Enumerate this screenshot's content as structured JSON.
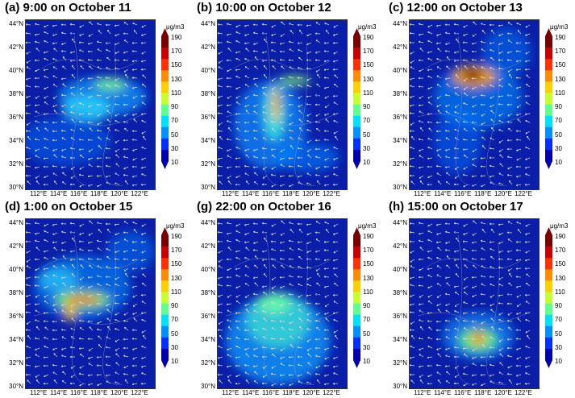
{
  "panels": [
    {
      "id": "a",
      "title": "(a) 9:00 on October 11"
    },
    {
      "id": "b",
      "title": "(b) 10:00 on October 12"
    },
    {
      "id": "c",
      "title": "(c) 12:00 on October 13"
    },
    {
      "id": "d",
      "title": "(d) 1:00 on October 15"
    },
    {
      "id": "g",
      "title": "(g) 22:00 on October 16"
    },
    {
      "id": "h",
      "title": "(h) 15:00 on October 17"
    }
  ],
  "axes": {
    "lat_labels": [
      "44°N",
      "42°N",
      "40°N",
      "38°N",
      "36°N",
      "34°N",
      "32°N",
      "30°N"
    ],
    "lon_labels": [
      "112°E",
      "114°E",
      "116°E",
      "118°E",
      "120°E",
      "122°E"
    ]
  },
  "colorbar": {
    "unit": "μg/m3",
    "ticks": [
      "190",
      "170",
      "150",
      "130",
      "110",
      "90",
      "70",
      "50",
      "30",
      "10"
    ],
    "colors": [
      "#7a0000",
      "#c80000",
      "#ff3000",
      "#ff8c00",
      "#ffd000",
      "#c8ff30",
      "#60ff90",
      "#00e0ff",
      "#0090ff",
      "#0030ff",
      "#0000b0"
    ]
  }
}
